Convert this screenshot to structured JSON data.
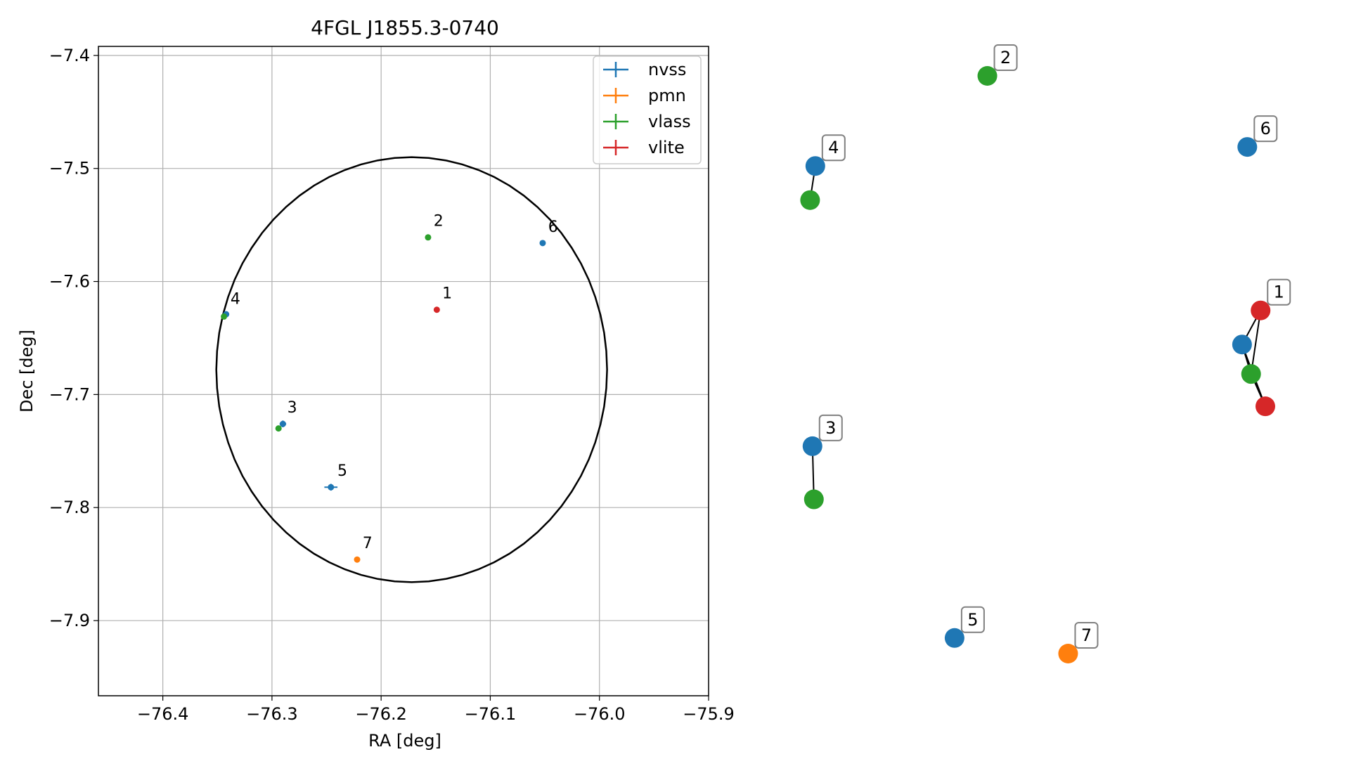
{
  "chart_data": [
    {
      "type": "scatter",
      "title": "4FGL J1855.3-0740",
      "xlabel": "RA [deg]",
      "ylabel": "Dec [deg]",
      "xlim": [
        -76.459,
        -75.9
      ],
      "ylim": [
        -7.9665,
        -7.392
      ],
      "x_ticks": [
        -76.4,
        -76.3,
        -76.2,
        -76.1,
        -76.0,
        -75.9
      ],
      "x_tick_labels": [
        "−76.4",
        "−76.3",
        "−76.2",
        "−76.1",
        "−76.0",
        "−75.9"
      ],
      "y_ticks": [
        -7.4,
        -7.5,
        -7.6,
        -7.7,
        -7.8,
        -7.9
      ],
      "y_tick_labels": [
        "−7.4",
        "−7.5",
        "−7.6",
        "−7.7",
        "−7.8",
        "−7.9"
      ],
      "grid": true,
      "legend_position": "top-right",
      "colors": {
        "nvss": "#1f77b4",
        "pmn": "#ff7f0e",
        "vlass": "#2ca02c",
        "vlite": "#d62728"
      },
      "series": [
        {
          "name": "nvss",
          "points": [
            {
              "x": -76.052,
              "y": -7.566,
              "xerr": 0.0,
              "yerr": 0.0
            },
            {
              "x": -76.342,
              "y": -7.629,
              "xerr": 0.0,
              "yerr": 0.0
            },
            {
              "x": -76.29,
              "y": -7.726,
              "xerr": 0.003,
              "yerr": 0.003
            },
            {
              "x": -76.246,
              "y": -7.782,
              "xerr": 0.006,
              "yerr": 0.003
            }
          ]
        },
        {
          "name": "pmn",
          "points": [
            {
              "x": -76.222,
              "y": -7.846,
              "xerr": 0.0,
              "yerr": 0.0
            }
          ]
        },
        {
          "name": "vlass",
          "points": [
            {
              "x": -76.157,
              "y": -7.561,
              "xerr": 0.0,
              "yerr": 0.0
            },
            {
              "x": -76.344,
              "y": -7.631,
              "xerr": 0.0,
              "yerr": 0.0
            },
            {
              "x": -76.294,
              "y": -7.73,
              "xerr": 0.0,
              "yerr": 0.0
            }
          ]
        },
        {
          "name": "vlite",
          "points": [
            {
              "x": -76.149,
              "y": -7.625,
              "xerr": 0.0,
              "yerr": 0.0
            }
          ]
        }
      ],
      "point_labels": [
        {
          "text": "1",
          "x": -76.144,
          "y": -7.615
        },
        {
          "text": "2",
          "x": -76.152,
          "y": -7.551
        },
        {
          "text": "3",
          "x": -76.286,
          "y": -7.716
        },
        {
          "text": "4",
          "x": -76.338,
          "y": -7.62
        },
        {
          "text": "5",
          "x": -76.24,
          "y": -7.772
        },
        {
          "text": "6",
          "x": -76.047,
          "y": -7.556
        },
        {
          "text": "7",
          "x": -76.217,
          "y": -7.836
        }
      ],
      "ellipse": {
        "cx": -76.172,
        "cy": -7.678,
        "rx": 0.179,
        "ry": 0.188
      }
    },
    {
      "type": "network",
      "axes": false,
      "nodes": [
        {
          "id": "2",
          "survey": "vlass",
          "x": 0.415,
          "y": 1.0
        },
        {
          "id": "6",
          "survey": "nvss",
          "x": 0.962,
          "y": 0.877
        },
        {
          "id": "4a",
          "survey": "nvss",
          "x": 0.053,
          "y": 0.844
        },
        {
          "id": "4b",
          "survey": "vlass",
          "x": 0.042,
          "y": 0.785
        },
        {
          "id": "1a",
          "survey": "vlite",
          "x": 0.99,
          "y": 0.594
        },
        {
          "id": "1b",
          "survey": "nvss",
          "x": 0.951,
          "y": 0.535
        },
        {
          "id": "1c",
          "survey": "vlass",
          "x": 0.97,
          "y": 0.484
        },
        {
          "id": "1d",
          "survey": "vlite",
          "x": 1.0,
          "y": 0.428
        },
        {
          "id": "3a",
          "survey": "nvss",
          "x": 0.047,
          "y": 0.359
        },
        {
          "id": "3b",
          "survey": "vlass",
          "x": 0.05,
          "y": 0.267
        },
        {
          "id": "5",
          "survey": "nvss",
          "x": 0.346,
          "y": 0.027
        },
        {
          "id": "7",
          "survey": "pmn",
          "x": 0.585,
          "y": 0.0
        }
      ],
      "edges": [
        [
          "4a",
          "4b"
        ],
        [
          "3a",
          "3b"
        ],
        [
          "1a",
          "1b"
        ],
        [
          "1a",
          "1c"
        ],
        [
          "1b",
          "1c"
        ],
        [
          "1b",
          "1d"
        ],
        [
          "1c",
          "1d"
        ]
      ],
      "labels": [
        {
          "text": "2",
          "node": "2"
        },
        {
          "text": "6",
          "node": "6"
        },
        {
          "text": "4",
          "node": "4a"
        },
        {
          "text": "1",
          "node": "1a"
        },
        {
          "text": "3",
          "node": "3a"
        },
        {
          "text": "5",
          "node": "5"
        },
        {
          "text": "7",
          "node": "7"
        }
      ]
    }
  ]
}
